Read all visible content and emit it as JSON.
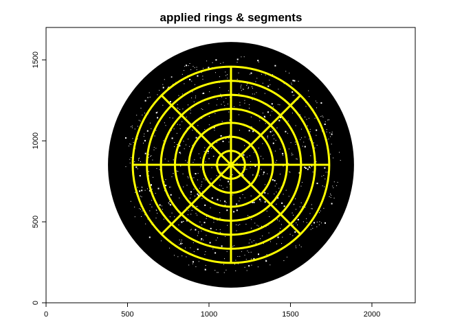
{
  "chart_data": {
    "type": "image",
    "title": "applied rings & segments",
    "xlabel": "",
    "ylabel": "",
    "xlim": [
      0,
      2266
    ],
    "ylim": [
      0,
      1700
    ],
    "x_ticks": [
      "0",
      "500",
      "1000",
      "1500",
      "2000"
    ],
    "y_ticks": [
      "0",
      "500",
      "1000",
      "1500"
    ],
    "grid": false,
    "disc": {
      "center": [
        1135,
        852
      ],
      "radius": 755,
      "color": "#000000"
    },
    "rings": {
      "center": [
        1135,
        852
      ],
      "radii": [
        86,
        172,
        258,
        344,
        430,
        516,
        603
      ],
      "color": "#FFFF00"
    },
    "segments": {
      "count": 8,
      "angles_deg": [
        0,
        45,
        90,
        135,
        180,
        225,
        270,
        315
      ],
      "color": "#FFFF00"
    },
    "speckle_color": "#FFFFFF"
  }
}
